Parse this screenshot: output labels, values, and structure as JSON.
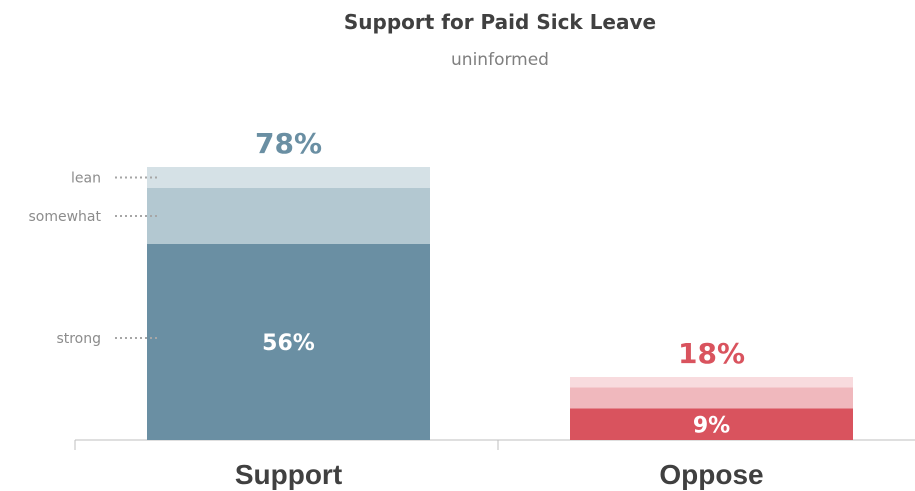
{
  "chart_data": {
    "type": "bar",
    "title": "Support for Paid Sick Leave",
    "subtitle": "uninformed",
    "categories": [
      "Support",
      "Oppose"
    ],
    "totals": [
      78,
      18
    ],
    "total_labels": [
      "78%",
      "18%"
    ],
    "series": [
      {
        "name": "strong",
        "values": [
          56,
          9
        ],
        "value_labels": [
          "56%",
          "9%"
        ]
      },
      {
        "name": "somewhat",
        "values": [
          16,
          6
        ]
      },
      {
        "name": "lean",
        "values": [
          6,
          3
        ]
      }
    ],
    "segment_labels": [
      "lean",
      "somewhat",
      "strong"
    ],
    "ylim": [
      0,
      100
    ],
    "colors": {
      "Support": [
        "#6a8fa3",
        "#b3c8d1",
        "#d5e1e6"
      ],
      "Oppose": [
        "#d9535e",
        "#f0b8bd",
        "#f8dbde"
      ],
      "Support_text": "#6a8fa3",
      "Oppose_text": "#d9535e"
    }
  }
}
